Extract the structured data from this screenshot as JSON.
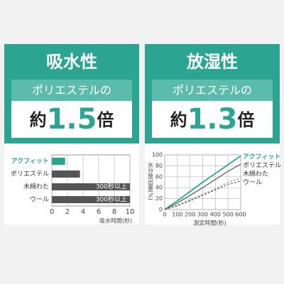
{
  "panels": [
    {
      "title": "吸水性",
      "compare": "ポリエステルの",
      "prefix": "約",
      "number": 1.5,
      "suffix": "倍"
    },
    {
      "title": "放湿性",
      "compare": "ポリエステルの",
      "prefix": "約",
      "number": 1.3,
      "suffix": "倍"
    }
  ],
  "chart_data": [
    {
      "type": "barh",
      "categories": [
        "アクフィット",
        "ポリエステル",
        "木綿わた",
        "ウール"
      ],
      "values": [
        1.7,
        3.6,
        10,
        10
      ],
      "colors": [
        "#2ba592",
        "#555555",
        "#555555",
        "#555555"
      ],
      "xlim": [
        0,
        10
      ],
      "xticks": [
        0,
        2,
        4,
        6,
        8,
        10
      ],
      "xlabel": "吸水時間(秒)",
      "grid": true,
      "annotations": [
        {
          "category": "木綿わた",
          "text": "300秒以上"
        },
        {
          "category": "ウール",
          "text": "300秒以上"
        }
      ]
    },
    {
      "type": "line",
      "x": [
        0,
        100,
        200,
        300,
        400,
        500,
        600
      ],
      "series": [
        {
          "name": "アクフィット",
          "color": "#2ba592",
          "dashed": false,
          "values": [
            0,
            16,
            33,
            50,
            66,
            82,
            98
          ]
        },
        {
          "name": "ポリエステル",
          "color": "#555555",
          "dashed": false,
          "values": [
            0,
            12,
            26,
            40,
            55,
            70,
            83
          ]
        },
        {
          "name": "木綿わた",
          "color": "#999999",
          "dashed": true,
          "values": [
            0,
            8,
            18,
            28,
            38,
            50,
            57
          ]
        },
        {
          "name": "ウール",
          "color": "#666666",
          "dashed": true,
          "values": [
            0,
            7,
            16,
            26,
            36,
            46,
            52
          ]
        }
      ],
      "xlim": [
        0,
        600
      ],
      "xticks": [
        0,
        100,
        200,
        300,
        400,
        500,
        600
      ],
      "ylim": [
        0,
        100
      ],
      "yticks": [
        0,
        20,
        40,
        60,
        80,
        100
      ],
      "xlabel": "測定時間(秒)",
      "ylabel": "水分放出量(%)",
      "grid": true
    }
  ]
}
